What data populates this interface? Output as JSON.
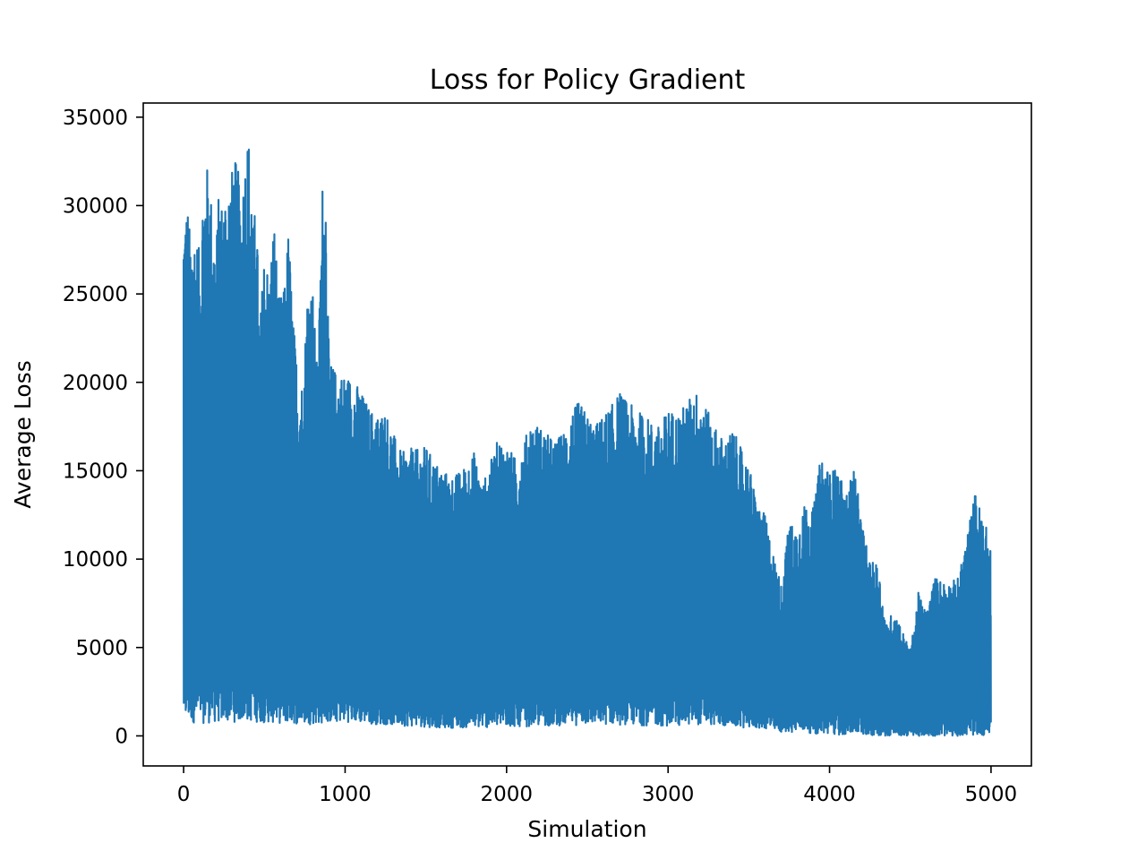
{
  "chart_data": {
    "type": "line",
    "title": "Loss for Policy Gradient",
    "xlabel": "Simulation",
    "ylabel": "Average Loss",
    "xlim": [
      -250,
      5250
    ],
    "ylim": [
      -1700,
      35800
    ],
    "x_ticks": [
      0,
      1000,
      2000,
      3000,
      4000,
      5000
    ],
    "y_ticks": [
      0,
      5000,
      10000,
      15000,
      20000,
      25000,
      30000,
      35000
    ],
    "grid": false,
    "legend": "none",
    "series": [
      {
        "color": "#1f77b4",
        "n_points": 5000,
        "upper_envelope": {
          "x": [
            0,
            10,
            25,
            40,
            60,
            80,
            100,
            120,
            140,
            160,
            180,
            200,
            220,
            240,
            260,
            280,
            300,
            320,
            340,
            360,
            380,
            400,
            415,
            430,
            450,
            470,
            500,
            530,
            560,
            590,
            620,
            650,
            680,
            710,
            740,
            770,
            800,
            830,
            860,
            880,
            900,
            930,
            960,
            1000,
            1050,
            1100,
            1150,
            1200,
            1250,
            1300,
            1350,
            1400,
            1450,
            1500,
            1550,
            1600,
            1650,
            1700,
            1750,
            1800,
            1850,
            1900,
            1950,
            2000,
            2050,
            2100,
            2150,
            2200,
            2250,
            2300,
            2350,
            2400,
            2450,
            2500,
            2550,
            2600,
            2650,
            2700,
            2750,
            2800,
            2850,
            2900,
            2950,
            3000,
            3050,
            3100,
            3150,
            3200,
            3250,
            3300,
            3350,
            3400,
            3450,
            3500,
            3550,
            3600,
            3650,
            3700,
            3750,
            3800,
            3850,
            3900,
            3950,
            4000,
            4050,
            4100,
            4150,
            4200,
            4250,
            4300,
            4350,
            4400,
            4450,
            4500,
            4550,
            4600,
            4650,
            4700,
            4750,
            4800,
            4850,
            4900,
            4950,
            5000
          ],
          "y": [
            29900,
            30000,
            30100,
            28400,
            29000,
            28400,
            27300,
            31300,
            32400,
            31900,
            29400,
            27800,
            31200,
            30200,
            31200,
            31600,
            32100,
            32600,
            31900,
            30600,
            33000,
            34200,
            33000,
            28800,
            30600,
            22800,
            27900,
            25900,
            29500,
            24800,
            25200,
            28800,
            23400,
            20400,
            20000,
            26000,
            25400,
            20200,
            31400,
            31200,
            21500,
            20800,
            20600,
            20500,
            20300,
            19500,
            18600,
            18200,
            18500,
            17100,
            16000,
            16300,
            16200,
            16400,
            15600,
            15200,
            14700,
            14900,
            15400,
            16100,
            14200,
            15500,
            16900,
            16500,
            15800,
            16400,
            17900,
            17600,
            17100,
            16700,
            17200,
            18400,
            18900,
            18200,
            17600,
            18200,
            18700,
            19500,
            18900,
            18500,
            18200,
            17800,
            17500,
            18600,
            18300,
            18700,
            19400,
            19600,
            18300,
            17400,
            16700,
            17400,
            16300,
            15400,
            13200,
            12500,
            10400,
            8600,
            12100,
            11800,
            13200,
            12900,
            16100,
            14900,
            15300,
            13500,
            15400,
            12100,
            9800,
            9800,
            6300,
            7200,
            6000,
            4800,
            8100,
            7000,
            9000,
            8800,
            8700,
            9000,
            11300,
            13800,
            12400,
            11000
          ]
        },
        "lower_envelope": {
          "x": [
            0,
            100,
            200,
            400,
            600,
            800,
            1000,
            1200,
            1400,
            1600,
            1800,
            2000,
            2200,
            2400,
            2600,
            2800,
            3000,
            3200,
            3400,
            3600,
            3700,
            3850,
            3900,
            4000,
            4200,
            4400,
            4600,
            4800,
            5000
          ],
          "y": [
            800,
            700,
            750,
            800,
            700,
            650,
            800,
            650,
            550,
            450,
            450,
            500,
            550,
            600,
            650,
            600,
            550,
            650,
            500,
            400,
            200,
            250,
            100,
            50,
            50,
            0,
            0,
            0,
            50
          ]
        }
      }
    ]
  }
}
